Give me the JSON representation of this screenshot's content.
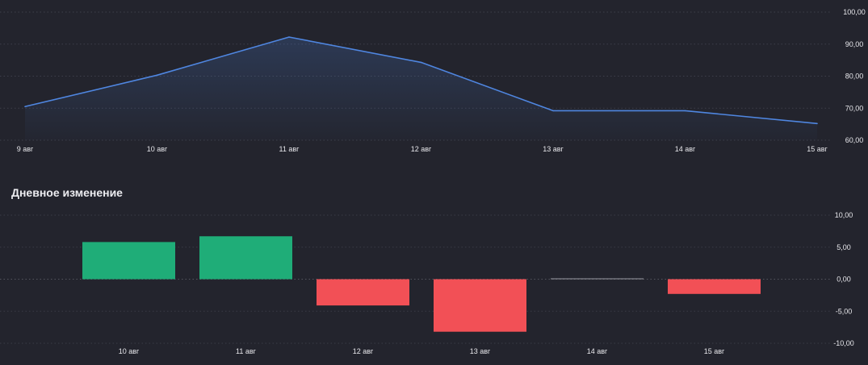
{
  "chart_data": [
    {
      "type": "area",
      "title": "",
      "categories": [
        "9 авг",
        "10 авг",
        "11 авг",
        "12 авг",
        "13 авг",
        "14 авг",
        "15 авг"
      ],
      "values": [
        70.5,
        80.3,
        92.2,
        84.3,
        69.2,
        69.2,
        65.2
      ],
      "ylim": [
        60,
        100
      ],
      "yticks": [
        "100,00",
        "90,00",
        "80,00",
        "70,00",
        "60,00"
      ],
      "ytick_values": [
        100,
        90,
        80,
        70,
        60
      ],
      "grid": true,
      "line_color": "#4f86e0"
    },
    {
      "type": "bar",
      "title": "Дневное изменение",
      "categories": [
        "10 авг",
        "11 авг",
        "12 авг",
        "13 авг",
        "14 авг",
        "15 авг"
      ],
      "values": [
        5.8,
        6.7,
        -4.1,
        -8.2,
        0.1,
        -2.3
      ],
      "ylim": [
        -10,
        10
      ],
      "yticks": [
        "10,00",
        "5,00",
        "0,00",
        "-5,00",
        "-10,00"
      ],
      "ytick_values": [
        10,
        5,
        0,
        -5,
        -10
      ],
      "grid": true,
      "positive_color": "#1fad78",
      "negative_color": "#f25056",
      "neutral_color": "#9a9aa2"
    }
  ]
}
